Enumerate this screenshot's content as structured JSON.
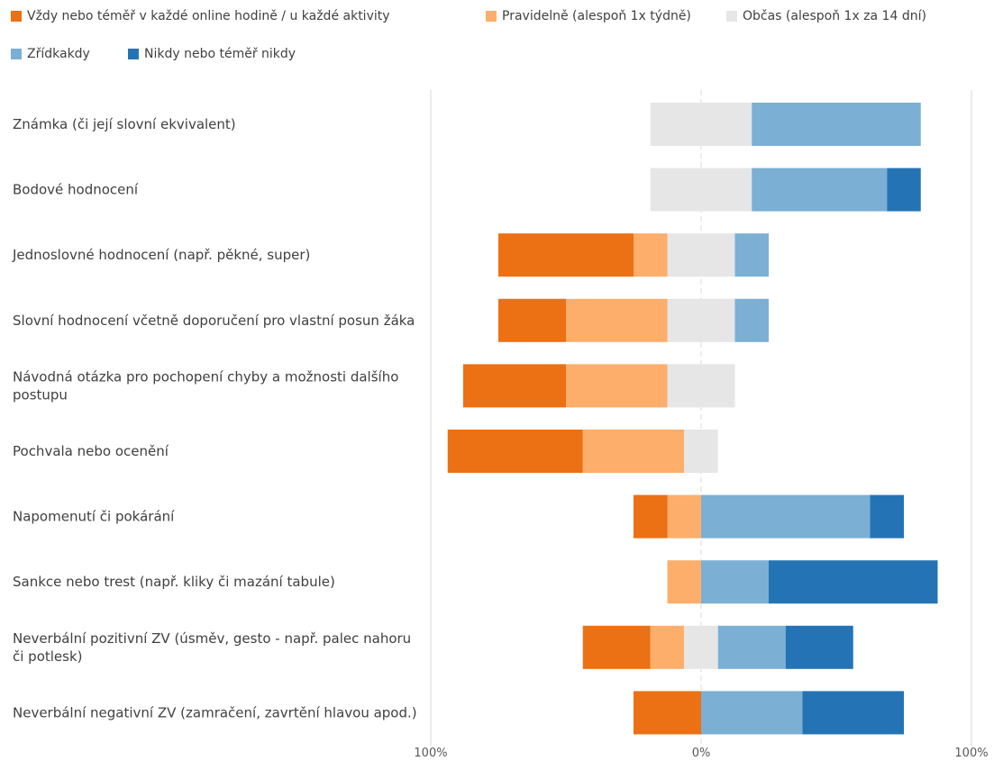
{
  "chart_data": {
    "type": "bar",
    "orientation": "horizontal",
    "stacking": "diverging",
    "xlim": [
      -100,
      100
    ],
    "x_ticks": [
      {
        "value": -100,
        "label": "100%"
      },
      {
        "value": 0,
        "label": "0%"
      },
      {
        "value": 100,
        "label": "100%"
      }
    ],
    "legend_position": "top",
    "categories": [
      "Známka (či její slovní ekvivalent)",
      "Bodové hodnocení",
      "Jednoslovné hodnocení (např. pěkné, super)",
      "Slovní hodnocení včetně doporučení pro vlastní posun žáka",
      "Návodná otázka pro pochopení chyby a možnosti dalšího postupu",
      "Pochvala nebo ocenění",
      "Napomenutí či pokárání",
      "Sankce nebo trest (např. kliky či mazání tabule)",
      "Neverbální pozitivní ZV (úsměv, gesto - např. palec nahoru či potlesk)",
      "Neverbální negativní ZV (zamračení, zavrtění hlavou apod.)"
    ],
    "series": [
      {
        "name": "Vždy nebo téměř v každé online hodině / u každé aktivity",
        "color": "#EC7014",
        "values": [
          0,
          0,
          50,
          25,
          38,
          50,
          12.5,
          0,
          25,
          25
        ]
      },
      {
        "name": "Pravidelně (alespoň 1x týdně)",
        "color": "#FDAE6B",
        "values": [
          0,
          0,
          12.5,
          37.5,
          37.5,
          37.5,
          12.5,
          12.5,
          12.5,
          0
        ]
      },
      {
        "name": "Občas (alespoň 1x za 14 dní)",
        "color": "#E6E6E6",
        "values": [
          37.5,
          37.5,
          25,
          25,
          25,
          12.5,
          0,
          0,
          12.5,
          0
        ]
      },
      {
        "name": "Zřídkakdy",
        "color": "#7BAFD4",
        "values": [
          62.5,
          50,
          12.5,
          12.5,
          0,
          0,
          62.5,
          25,
          25,
          37.5
        ]
      },
      {
        "name": "Nikdy nebo téměř nikdy",
        "color": "#2474B5",
        "values": [
          0,
          12.5,
          0,
          0,
          0,
          0,
          12.5,
          62.5,
          25,
          37.5
        ]
      }
    ]
  }
}
